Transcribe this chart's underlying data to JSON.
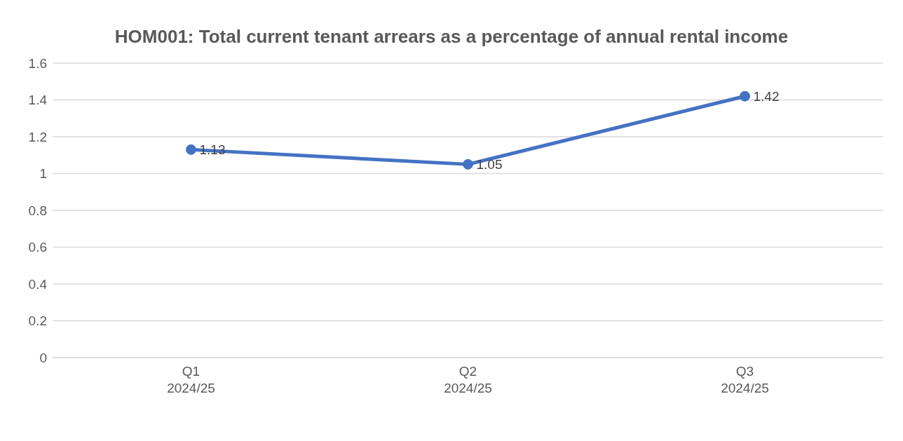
{
  "chart_data": {
    "type": "line",
    "title": "HOM001: Total current tenant arrears as a percentage of annual rental income",
    "categories": [
      "Q1\n2024/25",
      "Q2\n2024/25",
      "Q3\n2024/25"
    ],
    "series": [
      {
        "color": "#4472c4",
        "values": [
          1.13,
          1.05,
          1.42
        ]
      }
    ],
    "ylim": [
      0,
      1.6
    ],
    "yticks": [
      0,
      0.2,
      0.4,
      0.6,
      0.8,
      1,
      1.2,
      1.4,
      1.6
    ],
    "grid": "y",
    "marker": "circle",
    "line_style": "solid",
    "data_labels": true,
    "legend": false
  }
}
